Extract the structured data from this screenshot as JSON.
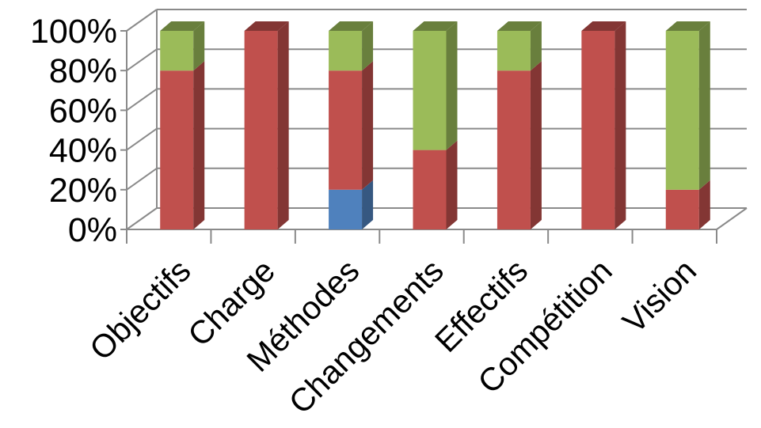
{
  "chart_data": {
    "type": "bar",
    "stacked": true,
    "percent_stacked": true,
    "three_d": true,
    "categories": [
      "Objectifs",
      "Charge",
      "Méthodes",
      "Changements",
      "Effectifs",
      "Compétition",
      "Vision"
    ],
    "series": [
      {
        "values": [
          0,
          0,
          20,
          0,
          0,
          0,
          0
        ],
        "color": "#4F81BD"
      },
      {
        "values": [
          80,
          100,
          60,
          40,
          80,
          100,
          20
        ],
        "color": "#C0504D"
      },
      {
        "values": [
          20,
          0,
          20,
          60,
          20,
          0,
          80
        ],
        "color": "#9BBB59"
      }
    ],
    "y_ticks": [
      "0%",
      "20%",
      "40%",
      "60%",
      "80%",
      "100%"
    ],
    "ylim": [
      0,
      100
    ],
    "grid": true,
    "legend": "none"
  }
}
